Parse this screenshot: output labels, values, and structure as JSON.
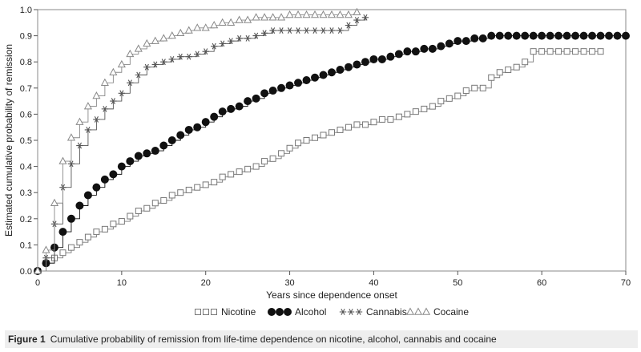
{
  "caption": {
    "label": "Figure 1",
    "text": "Cumulative probability of remission from life-time dependence on nicotine, alcohol, cannabis and cocaine"
  },
  "chart_data": {
    "type": "line",
    "title": "",
    "xlabel": "Years since dependence onset",
    "ylabel": "Estimated cumulative probability of remission",
    "xlim": [
      0,
      70
    ],
    "ylim": [
      0,
      1.0
    ],
    "x_ticks": [
      "0",
      "10",
      "20",
      "30",
      "40",
      "50",
      "60",
      "70"
    ],
    "y_ticks": [
      "0.0",
      "0.1",
      "0.2",
      "0.3",
      "0.4",
      "0.5",
      "0.6",
      "0.7",
      "0.8",
      "0.9",
      "1.0"
    ],
    "legend_position": "bottom",
    "grid": false,
    "series": [
      {
        "name": "Nicotine",
        "marker": "square",
        "color": "#777777",
        "points": [
          [
            0,
            0
          ],
          [
            1,
            0.03
          ],
          [
            2,
            0.05
          ],
          [
            3,
            0.07
          ],
          [
            4,
            0.09
          ],
          [
            5,
            0.11
          ],
          [
            6,
            0.13
          ],
          [
            7,
            0.15
          ],
          [
            8,
            0.16
          ],
          [
            9,
            0.18
          ],
          [
            10,
            0.19
          ],
          [
            11,
            0.21
          ],
          [
            12,
            0.23
          ],
          [
            13,
            0.24
          ],
          [
            14,
            0.26
          ],
          [
            15,
            0.27
          ],
          [
            16,
            0.29
          ],
          [
            17,
            0.3
          ],
          [
            18,
            0.31
          ],
          [
            19,
            0.32
          ],
          [
            20,
            0.33
          ],
          [
            21,
            0.34
          ],
          [
            22,
            0.36
          ],
          [
            23,
            0.37
          ],
          [
            24,
            0.38
          ],
          [
            25,
            0.39
          ],
          [
            26,
            0.4
          ],
          [
            27,
            0.42
          ],
          [
            28,
            0.43
          ],
          [
            29,
            0.45
          ],
          [
            30,
            0.47
          ],
          [
            31,
            0.49
          ],
          [
            32,
            0.5
          ],
          [
            33,
            0.51
          ],
          [
            34,
            0.52
          ],
          [
            35,
            0.53
          ],
          [
            36,
            0.54
          ],
          [
            37,
            0.55
          ],
          [
            38,
            0.56
          ],
          [
            39,
            0.56
          ],
          [
            40,
            0.57
          ],
          [
            41,
            0.58
          ],
          [
            42,
            0.58
          ],
          [
            43,
            0.59
          ],
          [
            44,
            0.6
          ],
          [
            45,
            0.61
          ],
          [
            46,
            0.62
          ],
          [
            47,
            0.63
          ],
          [
            48,
            0.65
          ],
          [
            49,
            0.66
          ],
          [
            50,
            0.67
          ],
          [
            51,
            0.69
          ],
          [
            52,
            0.7
          ],
          [
            53,
            0.7
          ],
          [
            54,
            0.74
          ],
          [
            55,
            0.76
          ],
          [
            56,
            0.77
          ],
          [
            57,
            0.78
          ],
          [
            58,
            0.8
          ],
          [
            59,
            0.84
          ],
          [
            60,
            0.84
          ],
          [
            61,
            0.84
          ],
          [
            62,
            0.84
          ],
          [
            63,
            0.84
          ],
          [
            64,
            0.84
          ],
          [
            65,
            0.84
          ],
          [
            66,
            0.84
          ],
          [
            67,
            0.84
          ]
        ]
      },
      {
        "name": "Alcohol",
        "marker": "circle",
        "color": "#111111",
        "points": [
          [
            0,
            0
          ],
          [
            1,
            0.03
          ],
          [
            2,
            0.09
          ],
          [
            3,
            0.15
          ],
          [
            4,
            0.2
          ],
          [
            5,
            0.25
          ],
          [
            6,
            0.29
          ],
          [
            7,
            0.32
          ],
          [
            8,
            0.35
          ],
          [
            9,
            0.37
          ],
          [
            10,
            0.4
          ],
          [
            11,
            0.42
          ],
          [
            12,
            0.44
          ],
          [
            13,
            0.45
          ],
          [
            14,
            0.46
          ],
          [
            15,
            0.48
          ],
          [
            16,
            0.5
          ],
          [
            17,
            0.52
          ],
          [
            18,
            0.54
          ],
          [
            19,
            0.55
          ],
          [
            20,
            0.57
          ],
          [
            21,
            0.59
          ],
          [
            22,
            0.61
          ],
          [
            23,
            0.62
          ],
          [
            24,
            0.63
          ],
          [
            25,
            0.65
          ],
          [
            26,
            0.66
          ],
          [
            27,
            0.68
          ],
          [
            28,
            0.69
          ],
          [
            29,
            0.7
          ],
          [
            30,
            0.71
          ],
          [
            31,
            0.72
          ],
          [
            32,
            0.73
          ],
          [
            33,
            0.74
          ],
          [
            34,
            0.75
          ],
          [
            35,
            0.76
          ],
          [
            36,
            0.77
          ],
          [
            37,
            0.78
          ],
          [
            38,
            0.79
          ],
          [
            39,
            0.8
          ],
          [
            40,
            0.81
          ],
          [
            41,
            0.81
          ],
          [
            42,
            0.82
          ],
          [
            43,
            0.83
          ],
          [
            44,
            0.84
          ],
          [
            45,
            0.84
          ],
          [
            46,
            0.85
          ],
          [
            47,
            0.85
          ],
          [
            48,
            0.86
          ],
          [
            49,
            0.87
          ],
          [
            50,
            0.88
          ],
          [
            51,
            0.88
          ],
          [
            52,
            0.89
          ],
          [
            53,
            0.89
          ],
          [
            54,
            0.9
          ],
          [
            55,
            0.9
          ],
          [
            56,
            0.9
          ],
          [
            57,
            0.9
          ],
          [
            58,
            0.9
          ],
          [
            59,
            0.9
          ],
          [
            60,
            0.9
          ],
          [
            61,
            0.9
          ],
          [
            62,
            0.9
          ],
          [
            63,
            0.9
          ],
          [
            64,
            0.9
          ],
          [
            65,
            0.9
          ],
          [
            66,
            0.9
          ],
          [
            67,
            0.9
          ],
          [
            68,
            0.9
          ],
          [
            69,
            0.9
          ],
          [
            70,
            0.9
          ]
        ]
      },
      {
        "name": "Cannabis",
        "marker": "asterisk",
        "color": "#555555",
        "points": [
          [
            0,
            0
          ],
          [
            1,
            0.05
          ],
          [
            2,
            0.18
          ],
          [
            3,
            0.32
          ],
          [
            4,
            0.41
          ],
          [
            5,
            0.48
          ],
          [
            6,
            0.54
          ],
          [
            7,
            0.58
          ],
          [
            8,
            0.62
          ],
          [
            9,
            0.65
          ],
          [
            10,
            0.68
          ],
          [
            11,
            0.72
          ],
          [
            12,
            0.75
          ],
          [
            13,
            0.78
          ],
          [
            14,
            0.79
          ],
          [
            15,
            0.8
          ],
          [
            16,
            0.81
          ],
          [
            17,
            0.82
          ],
          [
            18,
            0.82
          ],
          [
            19,
            0.83
          ],
          [
            20,
            0.84
          ],
          [
            21,
            0.86
          ],
          [
            22,
            0.87
          ],
          [
            23,
            0.88
          ],
          [
            24,
            0.89
          ],
          [
            25,
            0.89
          ],
          [
            26,
            0.9
          ],
          [
            27,
            0.91
          ],
          [
            28,
            0.92
          ],
          [
            29,
            0.92
          ],
          [
            30,
            0.92
          ],
          [
            31,
            0.92
          ],
          [
            32,
            0.92
          ],
          [
            33,
            0.92
          ],
          [
            34,
            0.92
          ],
          [
            35,
            0.92
          ],
          [
            36,
            0.92
          ],
          [
            37,
            0.94
          ],
          [
            38,
            0.96
          ],
          [
            39,
            0.97
          ]
        ]
      },
      {
        "name": "Cocaine",
        "marker": "triangle",
        "color": "#888888",
        "points": [
          [
            0,
            0
          ],
          [
            1,
            0.08
          ],
          [
            2,
            0.26
          ],
          [
            3,
            0.42
          ],
          [
            4,
            0.51
          ],
          [
            5,
            0.57
          ],
          [
            6,
            0.63
          ],
          [
            7,
            0.67
          ],
          [
            8,
            0.72
          ],
          [
            9,
            0.76
          ],
          [
            10,
            0.79
          ],
          [
            11,
            0.83
          ],
          [
            12,
            0.85
          ],
          [
            13,
            0.87
          ],
          [
            14,
            0.88
          ],
          [
            15,
            0.89
          ],
          [
            16,
            0.9
          ],
          [
            17,
            0.91
          ],
          [
            18,
            0.92
          ],
          [
            19,
            0.93
          ],
          [
            20,
            0.93
          ],
          [
            21,
            0.94
          ],
          [
            22,
            0.95
          ],
          [
            23,
            0.95
          ],
          [
            24,
            0.96
          ],
          [
            25,
            0.96
          ],
          [
            26,
            0.97
          ],
          [
            27,
            0.97
          ],
          [
            28,
            0.97
          ],
          [
            29,
            0.97
          ],
          [
            30,
            0.98
          ],
          [
            31,
            0.98
          ],
          [
            32,
            0.98
          ],
          [
            33,
            0.98
          ],
          [
            34,
            0.98
          ],
          [
            35,
            0.98
          ],
          [
            36,
            0.98
          ],
          [
            37,
            0.98
          ],
          [
            38,
            0.99
          ]
        ]
      }
    ]
  }
}
